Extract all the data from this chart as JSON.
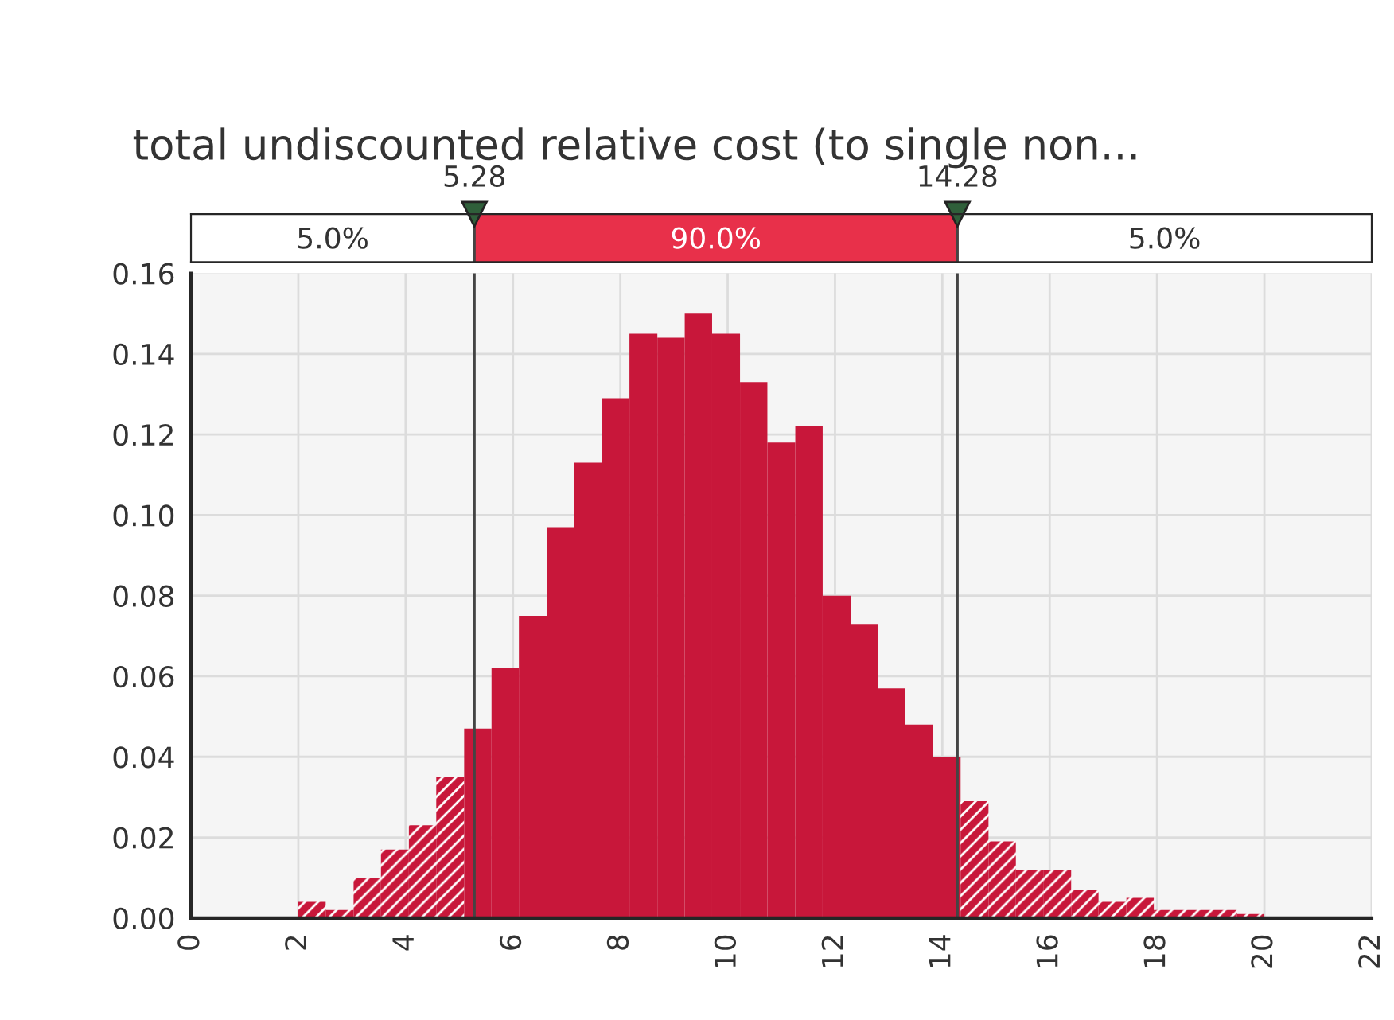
{
  "chart_data": {
    "type": "histogram",
    "title": "total undiscounted relative cost (to single non...",
    "bins": [
      2.0,
      2.51,
      3.03,
      3.54,
      4.06,
      4.57,
      5.09,
      5.6,
      6.11,
      6.63,
      7.14,
      7.66,
      8.17,
      8.69,
      9.2,
      9.71,
      10.23,
      10.74,
      11.26,
      11.77,
      12.29,
      12.8,
      13.31,
      13.83,
      14.34,
      14.86,
      15.37,
      15.89,
      16.4,
      16.91,
      17.43,
      17.94,
      18.46,
      18.97,
      19.49,
      20.0
    ],
    "values": [
      0.004,
      0.002,
      0.01,
      0.017,
      0.023,
      0.035,
      0.047,
      0.062,
      0.075,
      0.097,
      0.113,
      0.129,
      0.145,
      0.144,
      0.15,
      0.145,
      0.133,
      0.118,
      0.122,
      0.08,
      0.073,
      0.057,
      0.048,
      0.04,
      0.029,
      0.019,
      0.012,
      0.012,
      0.007,
      0.004,
      0.005,
      0.002,
      0.002,
      0.002,
      0.001
    ],
    "color": "#c8173a",
    "xlim": [
      0,
      22
    ],
    "xticks": [
      0,
      2,
      4,
      6,
      8,
      10,
      12,
      14,
      16,
      18,
      20,
      22
    ],
    "ylim": [
      0,
      0.16
    ],
    "yticks": [
      {
        "value": 0,
        "label": "0.00"
      },
      {
        "value": 0.02,
        "label": "0.02"
      },
      {
        "value": 0.04,
        "label": "0.04"
      },
      {
        "value": 0.06,
        "label": "0.06"
      },
      {
        "value": 0.08,
        "label": "0.08"
      },
      {
        "value": 0.1,
        "label": "0.10"
      },
      {
        "value": 0.12,
        "label": "0.12"
      },
      {
        "value": 0.14,
        "label": "0.14"
      },
      {
        "value": 0.16,
        "label": "0.16"
      }
    ],
    "ref_lines": [
      {
        "axis": "x",
        "value": 5.28,
        "label": "5.28"
      },
      {
        "axis": "x",
        "value": 14.28,
        "label": "14.28"
      }
    ],
    "annotations": [
      "5.0%",
      "90.0%",
      "5.0%"
    ],
    "grid": true
  }
}
